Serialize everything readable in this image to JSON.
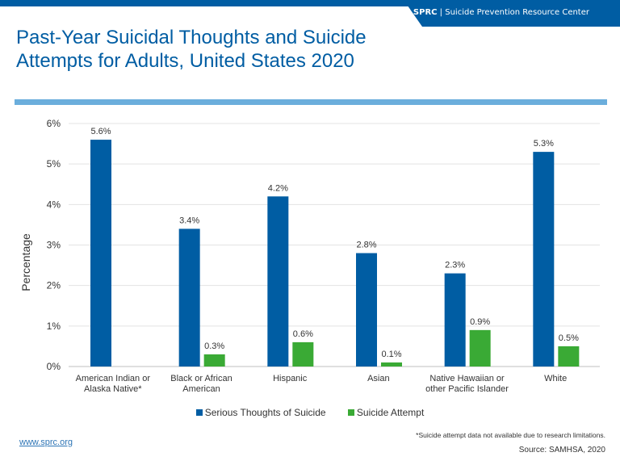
{
  "header": {
    "brand": "SPRC",
    "separator": "|",
    "org": "Suicide Prevention Resource Center"
  },
  "title": "Past-Year Suicidal Thoughts and Suicide Attempts for Adults, United States 2020",
  "chart_data": {
    "type": "bar",
    "ylabel": "Percentage",
    "ylim": [
      0,
      6
    ],
    "yticks": [
      "0%",
      "1%",
      "2%",
      "3%",
      "4%",
      "5%",
      "6%"
    ],
    "grid": true,
    "legend_position": "bottom",
    "categories": [
      [
        "American Indian or",
        "Alaska Native*"
      ],
      [
        "Black or African",
        "American"
      ],
      [
        "Hispanic"
      ],
      [
        "Asian"
      ],
      [
        "Native Hawaiian or",
        "other Pacific Islander"
      ],
      [
        "White"
      ]
    ],
    "series": [
      {
        "name": "Serious Thoughts of Suicide",
        "color": "#005DA3",
        "values": [
          5.6,
          3.4,
          4.2,
          2.8,
          2.3,
          5.3
        ],
        "labels": [
          "5.6%",
          "3.4%",
          "4.2%",
          "2.8%",
          "2.3%",
          "5.3%"
        ]
      },
      {
        "name": "Suicide Attempt",
        "color": "#3AAA35",
        "values": [
          null,
          0.3,
          0.6,
          0.1,
          0.9,
          0.5
        ],
        "labels": [
          null,
          "0.3%",
          "0.6%",
          "0.1%",
          "0.9%",
          "0.5%"
        ]
      }
    ]
  },
  "footer": {
    "url": "www.sprc.org",
    "note": "*Suicide attempt data not available due to research limitations.",
    "source": "Source:  SAMHSA, 2020"
  }
}
